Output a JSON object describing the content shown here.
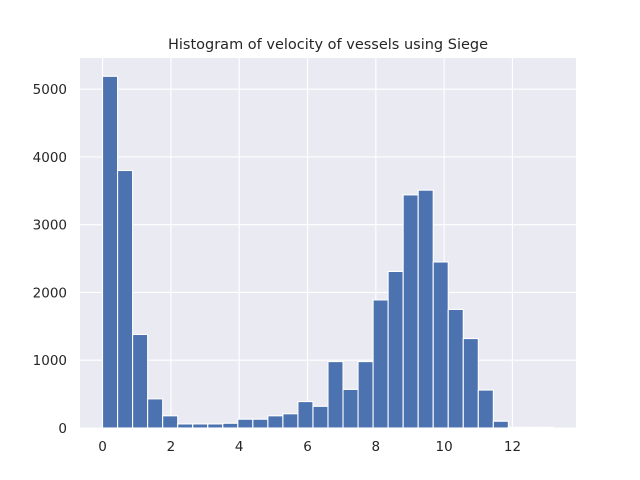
{
  "chart_data": {
    "type": "bar",
    "title": "Histogram of velocity of vessels using Siege",
    "xlabel": "",
    "ylabel": "",
    "xlim": [
      -0.66,
      13.86
    ],
    "ylim": [
      0,
      5460
    ],
    "xticks": [
      0,
      2,
      4,
      6,
      8,
      10,
      12
    ],
    "yticks": [
      0,
      1000,
      2000,
      3000,
      4000,
      5000
    ],
    "grid": true,
    "bin_start": 0.0,
    "bin_width": 0.44,
    "values": [
      5190,
      3800,
      1380,
      430,
      180,
      60,
      60,
      60,
      70,
      130,
      130,
      180,
      210,
      390,
      320,
      980,
      570,
      980,
      1890,
      2310,
      3440,
      3510,
      2450,
      1750,
      1320,
      560,
      100,
      10,
      10,
      10
    ]
  },
  "colors": {
    "bar": "#4c72b0",
    "plot_background": "#eaeaf2",
    "grid": "#ffffff",
    "text": "#262626"
  }
}
